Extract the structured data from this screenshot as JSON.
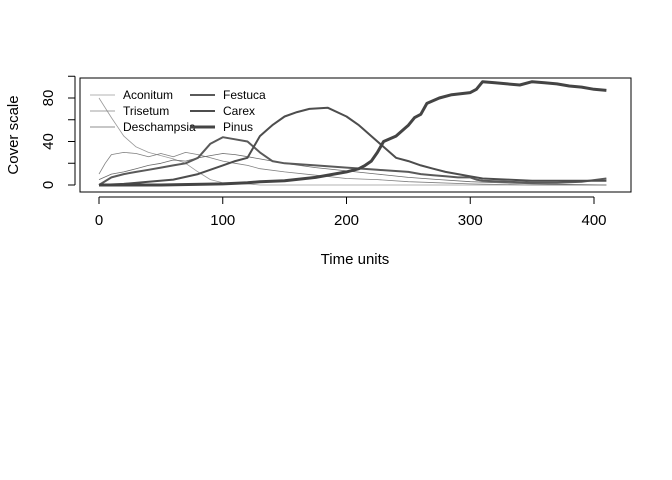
{
  "chart_data": {
    "type": "line",
    "title": "",
    "xlabel": "Time units",
    "ylabel": "Cover scale",
    "xlim": [
      0,
      410
    ],
    "ylim": [
      0,
      100
    ],
    "xticks": [
      0,
      100,
      200,
      300,
      400
    ],
    "yticks": [
      0,
      40,
      80
    ],
    "ytick_minor": [
      20,
      60,
      100
    ],
    "grid": false,
    "legend": "top-left",
    "series": [
      {
        "name": "Aconitum",
        "color": "#9a9a9a",
        "x": [
          0,
          10,
          20,
          30,
          40,
          50,
          60,
          70,
          80,
          90,
          100,
          110,
          120,
          130,
          150,
          175,
          200,
          250,
          300,
          350,
          410
        ],
        "y": [
          80,
          62,
          45,
          35,
          30,
          27,
          24,
          20,
          12,
          5,
          2,
          1,
          1,
          0,
          0,
          0,
          0,
          0,
          0,
          0,
          0
        ]
      },
      {
        "name": "Trisetum",
        "color": "#808080",
        "x": [
          0,
          5,
          10,
          20,
          30,
          40,
          50,
          60,
          70,
          80,
          90,
          100,
          110,
          120,
          130,
          150,
          175,
          200,
          225,
          250,
          275,
          300,
          350,
          410
        ],
        "y": [
          10,
          20,
          28,
          30,
          29,
          26,
          29,
          26,
          30,
          28,
          25,
          22,
          20,
          18,
          15,
          12,
          9,
          6,
          5,
          3,
          2,
          1,
          0,
          0
        ]
      },
      {
        "name": "Deschampsia",
        "color": "#6a6a6a",
        "x": [
          0,
          10,
          20,
          30,
          40,
          50,
          60,
          70,
          80,
          90,
          100,
          110,
          120,
          130,
          140,
          150,
          175,
          200,
          225,
          250,
          275,
          300,
          350,
          410
        ],
        "y": [
          5,
          10,
          12,
          15,
          18,
          20,
          23,
          22,
          25,
          27,
          29,
          28,
          26,
          24,
          22,
          20,
          16,
          13,
          10,
          7,
          5,
          3,
          1,
          0
        ]
      },
      {
        "name": "Festuca",
        "color": "#5a5a5a",
        "x": [
          0,
          10,
          20,
          30,
          40,
          50,
          60,
          70,
          80,
          90,
          100,
          110,
          120,
          130,
          140,
          150,
          175,
          200,
          225,
          250,
          260,
          270,
          280,
          290,
          300,
          305,
          310,
          330,
          350,
          370,
          390,
          410
        ],
        "y": [
          0,
          7,
          10,
          12,
          14,
          16,
          18,
          20,
          25,
          38,
          44,
          42,
          40,
          30,
          22,
          20,
          18,
          16,
          14,
          12,
          10,
          9,
          8,
          7,
          7,
          5,
          4,
          3,
          2,
          2,
          3,
          6
        ]
      },
      {
        "name": "Carex",
        "color": "#4d4d4d",
        "x": [
          0,
          20,
          40,
          60,
          80,
          100,
          110,
          120,
          125,
          130,
          140,
          150,
          160,
          170,
          185,
          200,
          210,
          220,
          230,
          240,
          250,
          260,
          270,
          280,
          290,
          300,
          310,
          330,
          350,
          370,
          390,
          410
        ],
        "y": [
          0,
          1,
          3,
          5,
          10,
          18,
          22,
          25,
          35,
          45,
          55,
          63,
          67,
          70,
          71,
          63,
          55,
          45,
          35,
          25,
          22,
          18,
          15,
          12,
          10,
          8,
          6,
          5,
          4,
          4,
          4,
          4
        ]
      },
      {
        "name": "Pinus",
        "color": "#444444",
        "x": [
          0,
          50,
          100,
          120,
          130,
          150,
          175,
          200,
          210,
          215,
          220,
          225,
          230,
          240,
          250,
          255,
          260,
          265,
          275,
          285,
          300,
          305,
          310,
          320,
          330,
          340,
          350,
          360,
          370,
          380,
          390,
          400,
          410
        ],
        "y": [
          0,
          0,
          1,
          2,
          3,
          4,
          7,
          12,
          15,
          18,
          22,
          30,
          40,
          45,
          55,
          62,
          65,
          75,
          80,
          83,
          85,
          88,
          95,
          94,
          93,
          92,
          95,
          94,
          93,
          91,
          90,
          88,
          87
        ]
      }
    ]
  }
}
